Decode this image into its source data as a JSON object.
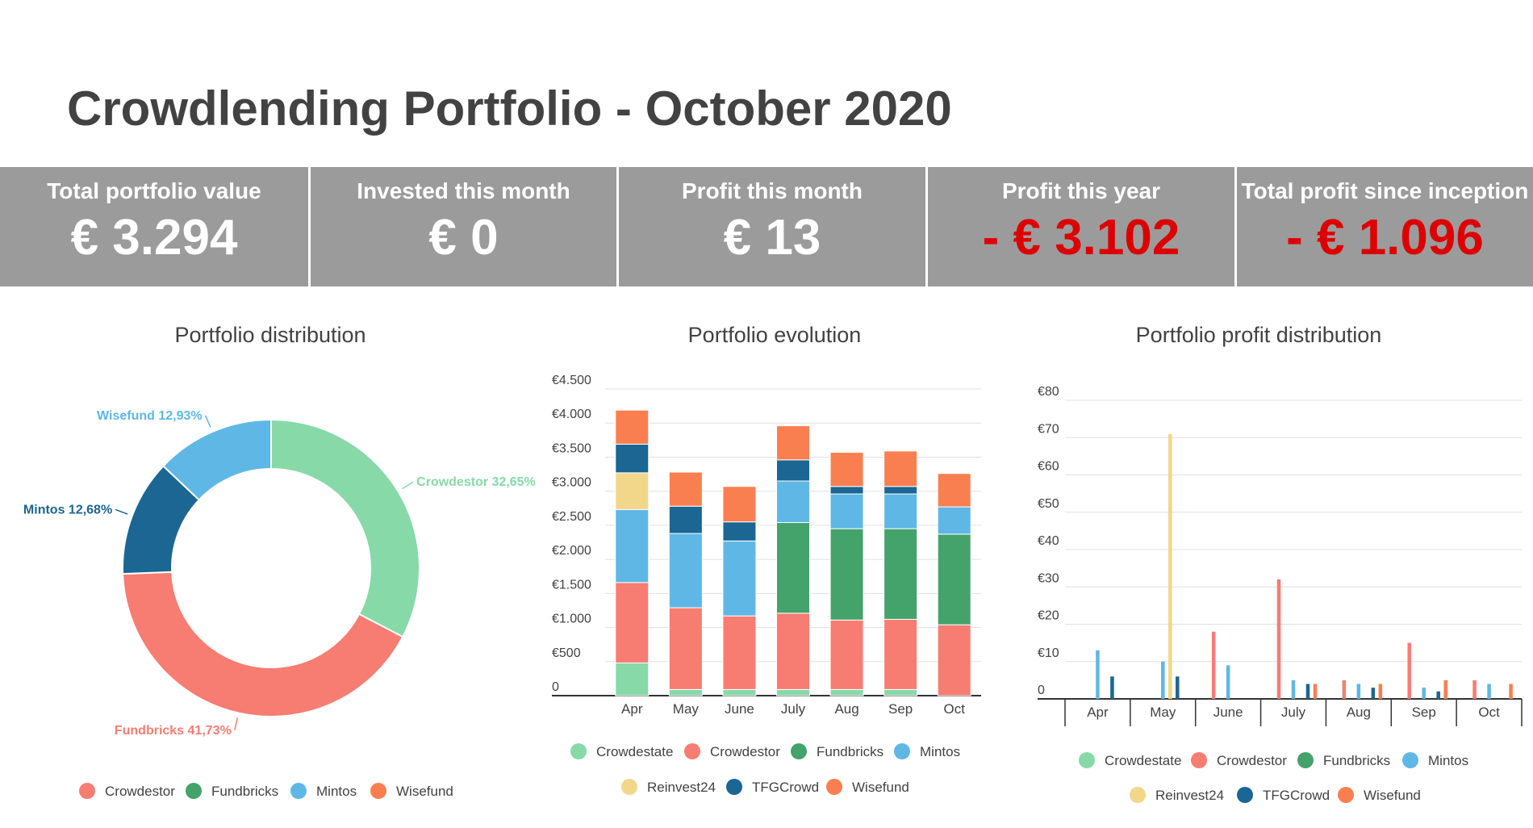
{
  "header": {
    "title": "Crowdlending Portfolio - October 2020"
  },
  "kpis": [
    {
      "label": "Total portfolio value",
      "value": "€ 3.294",
      "negative": false
    },
    {
      "label": "Invested this month",
      "value": "€ 0",
      "negative": false
    },
    {
      "label": "Profit this month",
      "value": "€ 13",
      "negative": false
    },
    {
      "label": "Profit this year",
      "value": "- € 3.102",
      "negative": true
    },
    {
      "label": "Total profit since inception",
      "value": "- € 1.096",
      "negative": true
    }
  ],
  "colors": {
    "Crowdestate": "#87d9a8",
    "Crowdestor": "#f77c72",
    "Fundbricks": "#43a36b",
    "Mintos": "#5fb7e6",
    "Reinvest24": "#f2d68a",
    "TFGCrowd": "#1b6693",
    "Wisefund": "#fa7f50"
  },
  "chart_data": [
    {
      "type": "pie",
      "title": "Portfolio distribution",
      "donut": true,
      "labels": [
        "Crowdestor",
        "Fundbricks",
        "Mintos",
        "Wisefund"
      ],
      "values": [
        32.65,
        41.73,
        12.68,
        12.93
      ],
      "slice_colors": [
        "#87d9a8",
        "#f77c72",
        "#1b6693",
        "#5fb7e6"
      ],
      "slice_labels": [
        "Crowdestor 32,65%",
        "Fundbricks 41,73%",
        "Mintos 12,68%",
        "Wisefund 12,93%"
      ],
      "legend_position": "bottom"
    },
    {
      "type": "bar",
      "stacked": true,
      "title": "Portfolio evolution",
      "categories": [
        "Apr",
        "May",
        "June",
        "July",
        "Aug",
        "Sep",
        "Oct"
      ],
      "ylim": [
        0,
        4500
      ],
      "yticks": [
        0,
        500,
        1000,
        1500,
        2000,
        2500,
        3000,
        3500,
        4000,
        4500
      ],
      "ytick_labels": [
        "0",
        "€500",
        "€1.000",
        "€1.500",
        "€2.000",
        "€2.500",
        "€3.000",
        "€3.500",
        "€4.000",
        "€4.500"
      ],
      "series": [
        {
          "name": "Crowdestate",
          "values": [
            480,
            90,
            90,
            90,
            90,
            90,
            0
          ]
        },
        {
          "name": "Crowdestor",
          "values": [
            1180,
            1200,
            1080,
            1120,
            1020,
            1030,
            1040
          ]
        },
        {
          "name": "Fundbricks",
          "values": [
            0,
            0,
            0,
            1330,
            1340,
            1330,
            1330
          ]
        },
        {
          "name": "Mintos",
          "values": [
            1070,
            1090,
            1100,
            610,
            510,
            510,
            400
          ]
        },
        {
          "name": "Reinvest24",
          "values": [
            540,
            0,
            0,
            0,
            0,
            0,
            0
          ]
        },
        {
          "name": "TFGCrowd",
          "values": [
            420,
            400,
            280,
            310,
            110,
            110,
            0
          ]
        },
        {
          "name": "Wisefund",
          "values": [
            500,
            500,
            520,
            500,
            500,
            520,
            490
          ]
        }
      ],
      "legend_position": "bottom"
    },
    {
      "type": "bar",
      "title": "Portfolio profit distribution",
      "categories": [
        "Apr",
        "May",
        "June",
        "July",
        "Aug",
        "Sep",
        "Oct"
      ],
      "ylim": [
        0,
        80
      ],
      "yticks": [
        0,
        10,
        20,
        30,
        40,
        50,
        60,
        70,
        80
      ],
      "ytick_labels": [
        "0",
        "€10",
        "€20",
        "€30",
        "€40",
        "€50",
        "€60",
        "€70",
        "€80"
      ],
      "series": [
        {
          "name": "Crowdestate",
          "values": [
            0,
            0,
            0,
            0,
            0,
            0,
            0
          ]
        },
        {
          "name": "Crowdestor",
          "values": [
            0,
            0,
            18,
            32,
            5,
            15,
            5
          ]
        },
        {
          "name": "Fundbricks",
          "values": [
            0,
            0,
            0,
            0,
            0,
            0,
            0
          ]
        },
        {
          "name": "Mintos",
          "values": [
            13,
            10,
            9,
            5,
            4,
            3,
            4
          ]
        },
        {
          "name": "Reinvest24",
          "values": [
            0,
            71,
            0,
            0,
            0,
            0,
            0
          ]
        },
        {
          "name": "TFGCrowd",
          "values": [
            6,
            6,
            0,
            4,
            3,
            2,
            0
          ]
        },
        {
          "name": "Wisefund",
          "values": [
            0,
            0,
            0,
            4,
            4,
            5,
            4
          ]
        }
      ],
      "legend_position": "bottom"
    }
  ]
}
